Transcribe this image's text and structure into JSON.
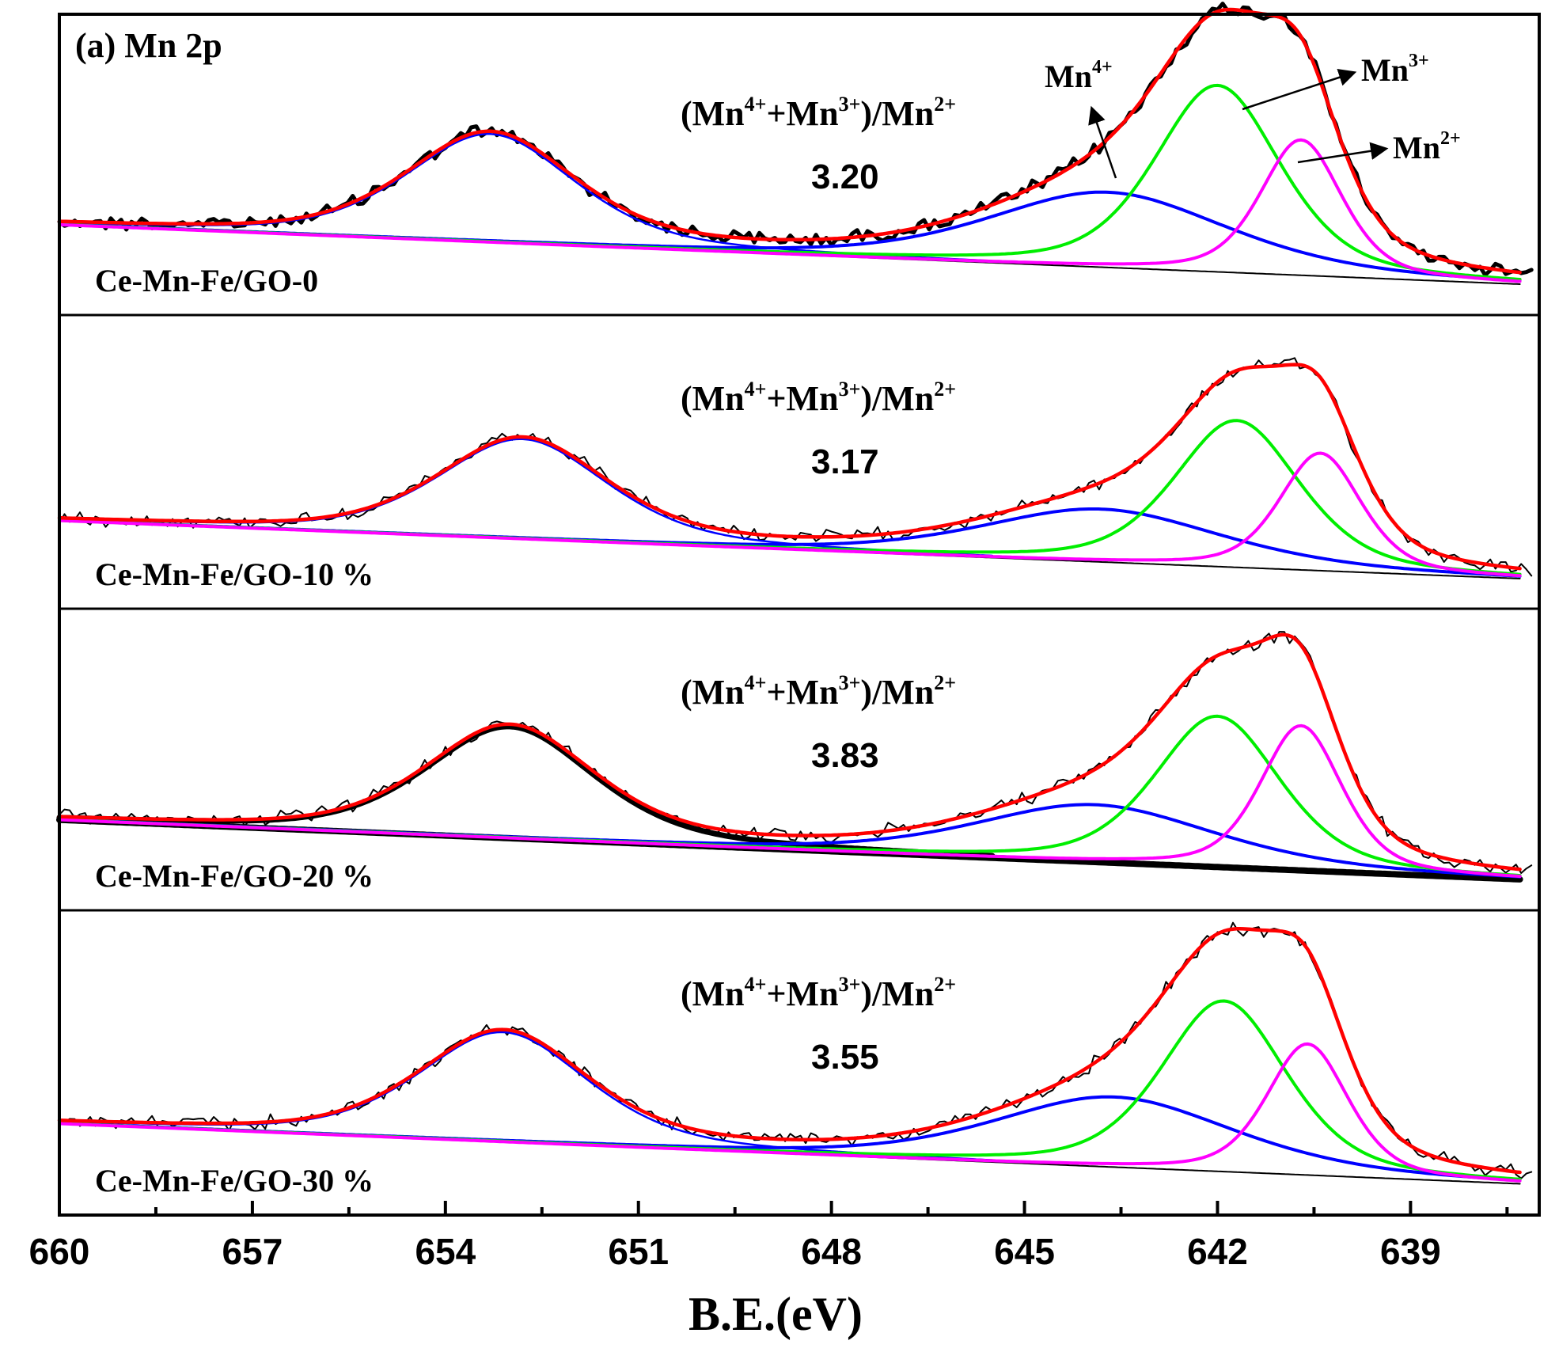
{
  "chart_data": {
    "type": "line",
    "title": "(a)  Mn 2p",
    "xlabel": "B.E.(eV)",
    "ylabel": "",
    "xlim": [
      660,
      637
    ],
    "x_ticks": [
      660,
      657,
      654,
      651,
      648,
      645,
      642,
      639
    ],
    "x_tick_labels": [
      "660",
      "657",
      "654",
      "651",
      "648",
      "645",
      "642",
      "639"
    ],
    "components": [
      {
        "name": "Mn4+",
        "color": "#0000ff"
      },
      {
        "name": "Mn3+",
        "color": "#00ee00"
      },
      {
        "name": "Mn2+",
        "color": "#ff00ff"
      },
      {
        "name": "envelope",
        "color": "#ff0000"
      },
      {
        "name": "raw",
        "color": "#000000"
      },
      {
        "name": "background",
        "color": "#000000"
      }
    ],
    "panels": [
      {
        "label": "Ce-Mn-Fe/GO-0",
        "ratio_label": "(Mn4+ +Mn3+)/Mn2+",
        "ratio": "3.20",
        "peak_2p1": {
          "center": 653.3,
          "height": 0.36
        },
        "peaks": {
          "Mn4+": {
            "center": 643.7,
            "height": 0.25
          },
          "Mn3+": {
            "center": 642.0,
            "height": 0.62
          },
          "Mn2+": {
            "center": 640.7,
            "height": 0.45
          }
        }
      },
      {
        "label": "Ce-Mn-Fe/GO-10 %",
        "ratio_label": "(Mn4+ +Mn3+)/Mn2+",
        "ratio": "3.17",
        "peak_2p1": {
          "center": 652.8,
          "height": 0.34
        },
        "peaks": {
          "Mn4+": {
            "center": 643.8,
            "height": 0.18
          },
          "Mn3+": {
            "center": 641.7,
            "height": 0.5
          },
          "Mn2+": {
            "center": 640.4,
            "height": 0.4
          }
        }
      },
      {
        "label": "Ce-Mn-Fe/GO-20 %",
        "ratio_label": "(Mn4+ +Mn3+)/Mn2+",
        "ratio": "3.83",
        "peak_2p1": {
          "center": 653.0,
          "height": 0.37
        },
        "peaks": {
          "Mn4+": {
            "center": 643.9,
            "height": 0.19
          },
          "Mn3+": {
            "center": 642.0,
            "height": 0.5
          },
          "Mn2+": {
            "center": 640.7,
            "height": 0.48
          }
        }
      },
      {
        "label": "Ce-Mn-Fe/GO-30 %",
        "ratio_label": "(Mn4+ +Mn3+)/Mn2+",
        "ratio": "3.55",
        "peak_2p1": {
          "center": 653.1,
          "height": 0.36
        },
        "peaks": {
          "Mn4+": {
            "center": 643.6,
            "height": 0.23
          },
          "Mn3+": {
            "center": 641.9,
            "height": 0.56
          },
          "Mn2+": {
            "center": 640.6,
            "height": 0.43
          }
        }
      }
    ],
    "annotations": [
      "Mn4+",
      "Mn3+",
      "Mn2+"
    ]
  }
}
